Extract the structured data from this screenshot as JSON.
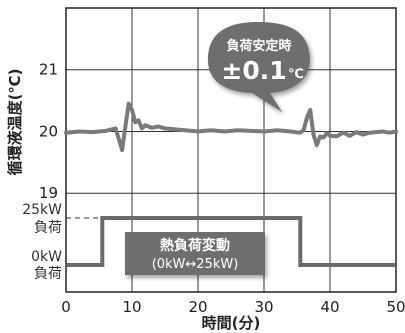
{
  "chart_data": {
    "type": "line",
    "xlabel": "時間(分)",
    "ylabel": "循環液温度(℃)",
    "xlim": [
      0,
      50
    ],
    "ylim": [
      17.4,
      22.0
    ],
    "x_ticks": [
      "0",
      "10",
      "20",
      "30",
      "40",
      "50"
    ],
    "y_ticks": [
      "19",
      "20",
      "21"
    ],
    "grid": true,
    "series": [
      {
        "x": [
          0,
          2,
          4,
          6,
          7.5,
          8.0,
          8.5,
          9.0,
          9.5,
          10.0,
          10.5,
          11.0,
          11.5,
          12.0,
          13.0,
          14.0,
          15.0,
          16.0,
          18,
          20,
          22,
          24,
          26,
          28,
          30,
          32,
          34,
          35.5,
          36.0,
          36.5,
          37.0,
          37.5,
          38.0,
          38.5,
          39.0,
          39.5,
          40.0,
          41.0,
          42.0,
          43.0,
          44.0,
          45,
          46,
          47,
          48,
          49,
          50
        ],
        "y": [
          19.98,
          20.0,
          19.99,
          20.01,
          20.05,
          19.88,
          19.7,
          20.08,
          20.45,
          20.35,
          20.15,
          20.18,
          20.05,
          20.1,
          20.06,
          20.08,
          20.05,
          20.04,
          20.02,
          20.0,
          20.02,
          20.0,
          20.02,
          20.01,
          20.0,
          20.02,
          20.0,
          19.98,
          20.02,
          20.22,
          20.35,
          19.95,
          19.78,
          19.92,
          19.9,
          19.97,
          19.93,
          19.92,
          19.98,
          19.93,
          19.99,
          19.95,
          19.98,
          19.99,
          20.0,
          19.98,
          20.0
        ]
      },
      {
        "name": "熱負荷変動",
        "x": [
          0,
          5.5,
          5.5,
          35.5,
          35.5,
          50
        ],
        "y": [
          0,
          0,
          25,
          25,
          0,
          0
        ]
      }
    ],
    "load_axis": {
      "labels": [
        "25kW",
        "負荷",
        "0kW",
        "負荷"
      ]
    },
    "annotations": {
      "stable": {
        "title": "負荷安定時",
        "value": "±0.1",
        "unit": "℃"
      },
      "load_change": {
        "title": "熱負荷変動",
        "range": "(0kW↔25kW)"
      }
    }
  }
}
